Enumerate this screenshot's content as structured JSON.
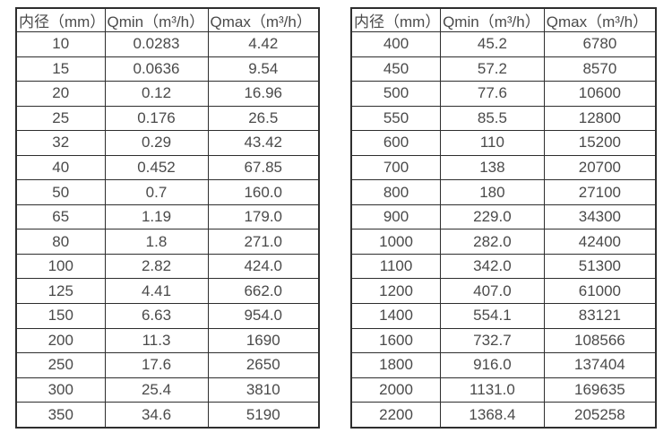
{
  "colors": {
    "background": "#ffffff",
    "border": "#2e2e2e",
    "text": "#4a4a4a"
  },
  "tables": [
    {
      "name": "spec-table-small-diameters",
      "headers": [
        "内径（mm）",
        "Qmin（m³/h）",
        "Qmax（m³/h）"
      ],
      "rows": [
        [
          "10",
          "0.0283",
          "4.42"
        ],
        [
          "15",
          "0.0636",
          "9.54"
        ],
        [
          "20",
          "0.12",
          "16.96"
        ],
        [
          "25",
          "0.176",
          "26.5"
        ],
        [
          "32",
          "0.29",
          "43.42"
        ],
        [
          "40",
          "0.452",
          "67.85"
        ],
        [
          "50",
          "0.7",
          "160.0"
        ],
        [
          "65",
          "1.19",
          "179.0"
        ],
        [
          "80",
          "1.8",
          "271.0"
        ],
        [
          "100",
          "2.82",
          "424.0"
        ],
        [
          "125",
          "4.41",
          "662.0"
        ],
        [
          "150",
          "6.63",
          "954.0"
        ],
        [
          "200",
          "11.3",
          "1690"
        ],
        [
          "250",
          "17.6",
          "2650"
        ],
        [
          "300",
          "25.4",
          "3810"
        ],
        [
          "350",
          "34.6",
          "5190"
        ]
      ]
    },
    {
      "name": "spec-table-large-diameters",
      "headers": [
        "内径（mm）",
        "Qmin（m³/h）",
        "Qmax（m³/h）"
      ],
      "rows": [
        [
          "400",
          "45.2",
          "6780"
        ],
        [
          "450",
          "57.2",
          "8570"
        ],
        [
          "500",
          "77.6",
          "10600"
        ],
        [
          "550",
          "85.5",
          "12800"
        ],
        [
          "600",
          "110",
          "15200"
        ],
        [
          "700",
          "138",
          "20700"
        ],
        [
          "800",
          "180",
          "27100"
        ],
        [
          "900",
          "229.0",
          "34300"
        ],
        [
          "1000",
          "282.0",
          "42400"
        ],
        [
          "1100",
          "342.0",
          "51300"
        ],
        [
          "1200",
          "407.0",
          "61000"
        ],
        [
          "1400",
          "554.1",
          "83121"
        ],
        [
          "1600",
          "732.7",
          "108566"
        ],
        [
          "1800",
          "916.0",
          "137404"
        ],
        [
          "2000",
          "1131.0",
          "169635"
        ],
        [
          "2200",
          "1368.4",
          "205258"
        ]
      ]
    }
  ]
}
